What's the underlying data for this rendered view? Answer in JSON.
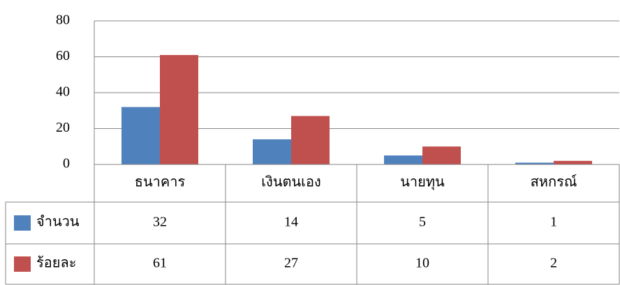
{
  "chart_data": {
    "type": "bar",
    "categories": [
      "ธนาคาร",
      "เงินตนเอง",
      "นายทุน",
      "สหกรณ์"
    ],
    "series": [
      {
        "name": "จำนวน",
        "color": "#4f81bd",
        "values": [
          32,
          14,
          5,
          1
        ]
      },
      {
        "name": "ร้อยละ",
        "color": "#c0504d",
        "values": [
          61,
          27,
          10,
          2
        ]
      }
    ],
    "ylim": [
      0,
      80
    ],
    "yticks": [
      0,
      20,
      40,
      60,
      80
    ],
    "grid": true,
    "data_table": true
  }
}
